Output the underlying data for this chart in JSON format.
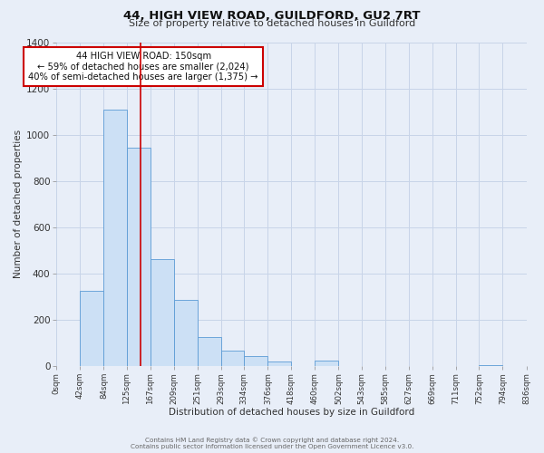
{
  "title": "44, HIGH VIEW ROAD, GUILDFORD, GU2 7RT",
  "subtitle": "Size of property relative to detached houses in Guildford",
  "xlabel": "Distribution of detached houses by size in Guildford",
  "ylabel": "Number of detached properties",
  "footer_line1": "Contains HM Land Registry data © Crown copyright and database right 2024.",
  "footer_line2": "Contains public sector information licensed under the Open Government Licence v3.0.",
  "annotation_line1": "44 HIGH VIEW ROAD: 150sqm",
  "annotation_line2": "← 59% of detached houses are smaller (2,024)",
  "annotation_line3": "40% of semi-detached houses are larger (1,375) →",
  "bar_edges": [
    0,
    42,
    84,
    125,
    167,
    209,
    251,
    293,
    334,
    376,
    418,
    460,
    502,
    543,
    585,
    627,
    669,
    711,
    752,
    794,
    836
  ],
  "bar_heights": [
    0,
    325,
    1110,
    945,
    462,
    285,
    125,
    68,
    45,
    18,
    0,
    22,
    0,
    0,
    0,
    0,
    0,
    0,
    5,
    0,
    0
  ],
  "bar_color": "#cce0f5",
  "bar_edgecolor": "#5b9bd5",
  "grid_color": "#c8d4e8",
  "background_color": "#e8eef8",
  "ax_background_color": "#e8eef8",
  "red_line_x": 150,
  "annotation_box_color": "#ffffff",
  "annotation_box_edgecolor": "#cc0000",
  "ylim": [
    0,
    1400
  ],
  "yticks": [
    0,
    200,
    400,
    600,
    800,
    1000,
    1200,
    1400
  ],
  "xtick_labels": [
    "0sqm",
    "42sqm",
    "84sqm",
    "125sqm",
    "167sqm",
    "209sqm",
    "251sqm",
    "293sqm",
    "334sqm",
    "376sqm",
    "418sqm",
    "460sqm",
    "502sqm",
    "543sqm",
    "585sqm",
    "627sqm",
    "669sqm",
    "711sqm",
    "752sqm",
    "794sqm",
    "836sqm"
  ]
}
